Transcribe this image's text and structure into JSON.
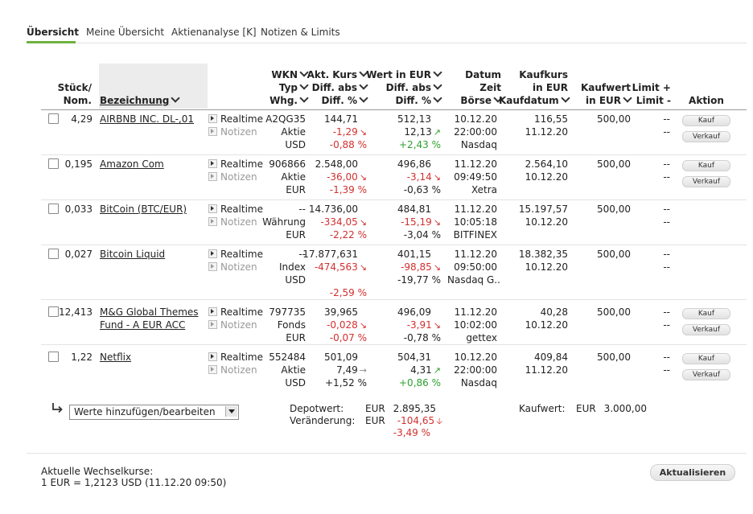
{
  "tabs": [
    "Übersicht",
    "Meine Übersicht",
    "Aktienanalyse [K]",
    "Notizen & Limits"
  ],
  "headers": {
    "stueck": [
      "Stück/",
      "Nom."
    ],
    "bezeichnung": "Bezeichnung",
    "wkn": [
      "WKN",
      "Typ",
      "Whg."
    ],
    "kurs": [
      "Akt. Kurs",
      "Diff. abs",
      "Diff. %"
    ],
    "wert": [
      "Wert in EUR",
      "Diff. abs",
      "Diff. %"
    ],
    "datum": [
      "Datum",
      "Zeit",
      "Börse"
    ],
    "kaufkurs": [
      "Kaufkurs",
      "in EUR",
      "Kaufdatum"
    ],
    "kaufwert": [
      "Kaufwert",
      "in EUR"
    ],
    "limit": [
      "Limit +",
      "Limit -"
    ],
    "aktion": "Aktion"
  },
  "labels": {
    "realtime": "Realtime",
    "notizen": "Notizen",
    "kauf": "Kauf",
    "verkauf": "Verkauf"
  },
  "rows": [
    {
      "qty": "4,29",
      "name": [
        "AIRBNB INC. DL-,01"
      ],
      "wkn": "A2QG35",
      "typ": "Aktie",
      "whg": "USD",
      "kurs": "144,71",
      "kursDiff": "-1,29",
      "kursPct": "-0,88 %",
      "wert": "512,13",
      "wertDiff": "12,13",
      "wertPct": "+2,43 %",
      "datum": "10.12.20",
      "zeit": "22:00:00",
      "boerse": "Nasdaq",
      "kaufkurs": "116,55",
      "kaufdatum": "11.12.20",
      "kaufwert": "500,00",
      "limitUp": "--",
      "limitDown": "--"
    },
    {
      "qty": "0,195",
      "name": [
        "Amazon Com"
      ],
      "wkn": "906866",
      "typ": "Aktie",
      "whg": "EUR",
      "kurs": "2.548,00",
      "kursDiff": "-36,00",
      "kursPct": "-1,39 %",
      "wert": "496,86",
      "wertDiff": "-3,14",
      "wertPct": "-0,63 %",
      "datum": "11.12.20",
      "zeit": "09:49:50",
      "boerse": "Xetra",
      "kaufkurs": "2.564,10",
      "kaufdatum": "10.12.20",
      "kaufwert": "500,00",
      "limitUp": "--",
      "limitDown": "--"
    },
    {
      "qty": "0,033",
      "name": [
        "BitCoin (BTC/EUR)"
      ],
      "wkn": "--",
      "typ": "Währung",
      "whg": "EUR",
      "kurs": "14.736,00",
      "kursDiff": "-334,05",
      "kursPct": "-2,22 %",
      "wert": "484,81",
      "wertDiff": "-15,19",
      "wertPct": "-3,04 %",
      "datum": "11.12.20",
      "zeit": "10:05:18",
      "boerse": "BITFINEX",
      "kaufkurs": "15.197,57",
      "kaufdatum": "10.12.20",
      "kaufwert": "500,00",
      "limitUp": "--",
      "limitDown": "--"
    },
    {
      "qty": "0,027",
      "name": [
        "Bitcoin Liquid"
      ],
      "wkn": "--",
      "typ": "Index",
      "whg": "USD",
      "kurs": "17.877,631",
      "kursDiff": "-474,563",
      "kursPct": "-2,59 %",
      "wert": "401,15",
      "wertDiff": "-98,85",
      "wertPct": "-19,77 %",
      "datum": "11.12.20",
      "zeit": "09:50:00",
      "boerse": "Nasdaq G..",
      "kaufkurs": "18.382,35",
      "kaufdatum": "10.12.20",
      "kaufwert": "500,00",
      "limitUp": "--",
      "limitDown": "--"
    },
    {
      "qty": "12,413",
      "name": [
        "M&G Global Themes",
        "Fund - A EUR ACC"
      ],
      "wkn": "797735",
      "typ": "Fonds",
      "whg": "EUR",
      "kurs": "39,965",
      "kursDiff": "-0,028",
      "kursPct": "-0,07 %",
      "wert": "496,09",
      "wertDiff": "-3,91",
      "wertPct": "-0,78 %",
      "datum": "11.12.20",
      "zeit": "10:02:00",
      "boerse": "gettex",
      "kaufkurs": "40,28",
      "kaufdatum": "10.12.20",
      "kaufwert": "500,00",
      "limitUp": "--",
      "limitDown": "--"
    },
    {
      "qty": "1,22",
      "name": [
        "Netflix"
      ],
      "wkn": "552484",
      "typ": "Aktie",
      "whg": "USD",
      "kurs": "501,09",
      "kursDiff": "7,49",
      "kursPct": "+1,52 %",
      "wert": "504,31",
      "wertDiff": "4,31",
      "wertPct": "+0,86 %",
      "datum": "10.12.20",
      "zeit": "22:00:00",
      "boerse": "Nasdaq",
      "kaufkurs": "409,84",
      "kaufdatum": "11.12.20",
      "kaufwert": "500,00",
      "limitUp": "--",
      "limitDown": "--"
    }
  ],
  "addSelect": "Werte hinzufügen/bearbeiten",
  "summary": {
    "depotLabel": "Depotwert:",
    "changeLabel": "Veränderung:",
    "cur": "EUR",
    "depotValue": "2.895,35",
    "changeValue": "-104,65",
    "changePct": "-3,49 %",
    "kaufwertLabel": "Kaufwert:",
    "kaufwertValue": "3.000,00"
  },
  "footer": {
    "line1": "Aktuelle Wechselkurse:",
    "line2": "1 EUR = 1,2123 USD (11.12.20  09:50)",
    "button": "Aktualisieren"
  },
  "colors": {
    "accent": "#6db33f",
    "negative": "#d2302f",
    "positive": "#2ea12f"
  }
}
